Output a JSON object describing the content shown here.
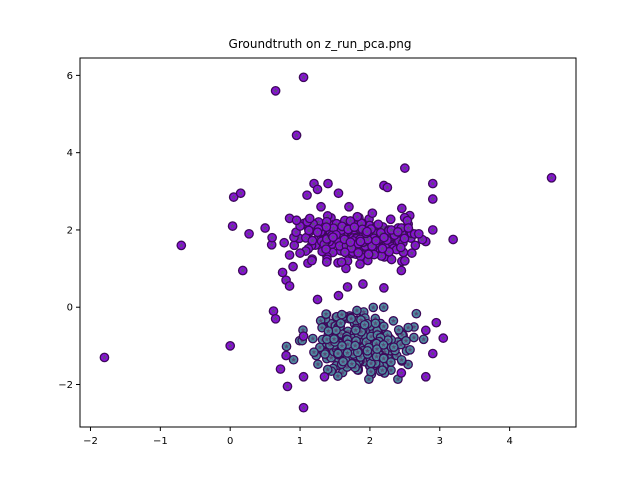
{
  "chart_data": {
    "type": "scatter",
    "title": "Groundtruth on z_run_pca.png",
    "xlabel": "",
    "ylabel": "",
    "xlim": [
      -2.15,
      4.95
    ],
    "ylim": [
      -3.1,
      6.45
    ],
    "xticks": [
      -2,
      -1,
      0,
      1,
      2,
      3,
      4
    ],
    "yticks": [
      -2,
      0,
      2,
      4,
      6
    ],
    "grid": false,
    "legend": "none",
    "colors": {
      "purple_fill": "#8a10d8",
      "teal_fill": "#4d8aa0",
      "edge": "#3d0a5a",
      "star": "#5a4a7a"
    },
    "series": [
      {
        "marker": "circle-with-star",
        "color": "#8a10d8",
        "points": [
          [
            -1.8,
            -1.3
          ],
          [
            -0.7,
            1.6
          ],
          [
            0.0,
            -1.0
          ],
          [
            0.05,
            2.85
          ],
          [
            0.15,
            2.95
          ],
          [
            0.18,
            0.95
          ],
          [
            0.27,
            1.9
          ],
          [
            0.5,
            2.05
          ],
          [
            0.6,
            1.8
          ],
          [
            0.62,
            -0.1
          ],
          [
            0.65,
            -0.3
          ],
          [
            0.72,
            -1.6
          ],
          [
            0.82,
            -2.05
          ],
          [
            0.8,
            -1.25
          ],
          [
            0.65,
            5.6
          ],
          [
            1.05,
            5.95
          ],
          [
            0.95,
            4.45
          ],
          [
            1.2,
            3.2
          ],
          [
            1.1,
            2.9
          ],
          [
            1.25,
            3.05
          ],
          [
            1.4,
            3.2
          ],
          [
            1.55,
            2.95
          ],
          [
            2.2,
            3.15
          ],
          [
            2.25,
            3.1
          ],
          [
            2.5,
            3.6
          ],
          [
            2.9,
            3.2
          ],
          [
            2.9,
            2.8
          ],
          [
            4.6,
            3.35
          ],
          [
            3.05,
            -0.8
          ],
          [
            2.95,
            -0.4
          ],
          [
            2.8,
            -0.6
          ],
          [
            2.9,
            -1.2
          ],
          [
            2.8,
            -1.8
          ],
          [
            2.45,
            -1.7
          ],
          [
            1.05,
            -0.75
          ],
          [
            1.05,
            -1.8
          ],
          [
            1.05,
            -2.6
          ],
          [
            1.35,
            -1.8
          ],
          [
            1.25,
            0.2
          ],
          [
            0.75,
            0.9
          ],
          [
            0.8,
            0.7
          ],
          [
            0.85,
            0.55
          ],
          [
            2.9,
            2.0
          ],
          [
            2.8,
            1.7
          ],
          [
            2.6,
            1.4
          ],
          [
            2.5,
            1.2
          ],
          [
            2.45,
            0.95
          ],
          [
            2.2,
            0.5
          ],
          [
            1.9,
            0.6
          ],
          [
            1.55,
            0.3
          ],
          [
            1.3,
            2.6
          ],
          [
            1.7,
            2.6
          ],
          [
            2.45,
            2.05
          ],
          [
            2.65,
            1.6
          ],
          [
            2.75,
            1.75
          ],
          [
            0.85,
            1.35
          ],
          [
            0.9,
            1.05
          ],
          [
            1.0,
            1.4
          ],
          [
            1.0,
            2.1
          ],
          [
            0.85,
            2.3
          ],
          [
            0.95,
            2.25
          ],
          [
            2.7,
            1.9
          ],
          [
            2.4,
            1.95
          ],
          [
            2.55,
            2.05
          ]
        ]
      }
    ]
  }
}
